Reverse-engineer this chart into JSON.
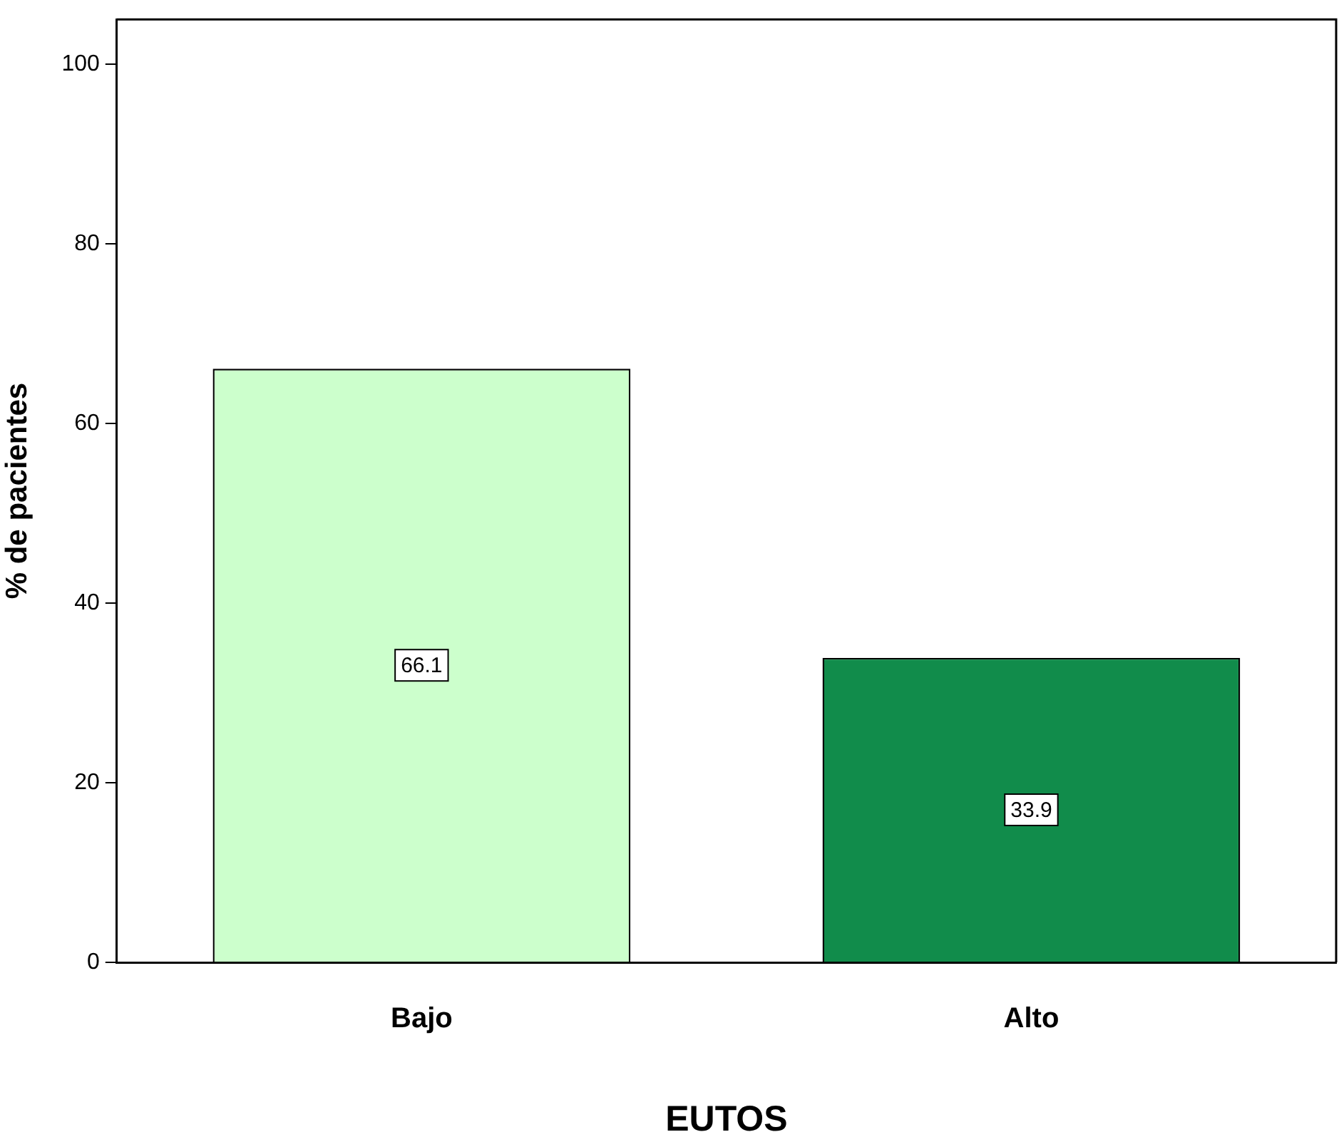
{
  "chart_data": {
    "type": "bar",
    "xlabel": "EUTOS",
    "ylabel": "% de pacientes",
    "categories": [
      "Bajo",
      "Alto"
    ],
    "values": [
      66.1,
      33.9
    ],
    "colors": [
      "#ccffcc",
      "#118c4b"
    ],
    "ylim": [
      0,
      105
    ],
    "yticks": [
      0,
      20,
      40,
      60,
      80,
      100
    ],
    "grid": false,
    "legend": false,
    "data_labels": true
  }
}
